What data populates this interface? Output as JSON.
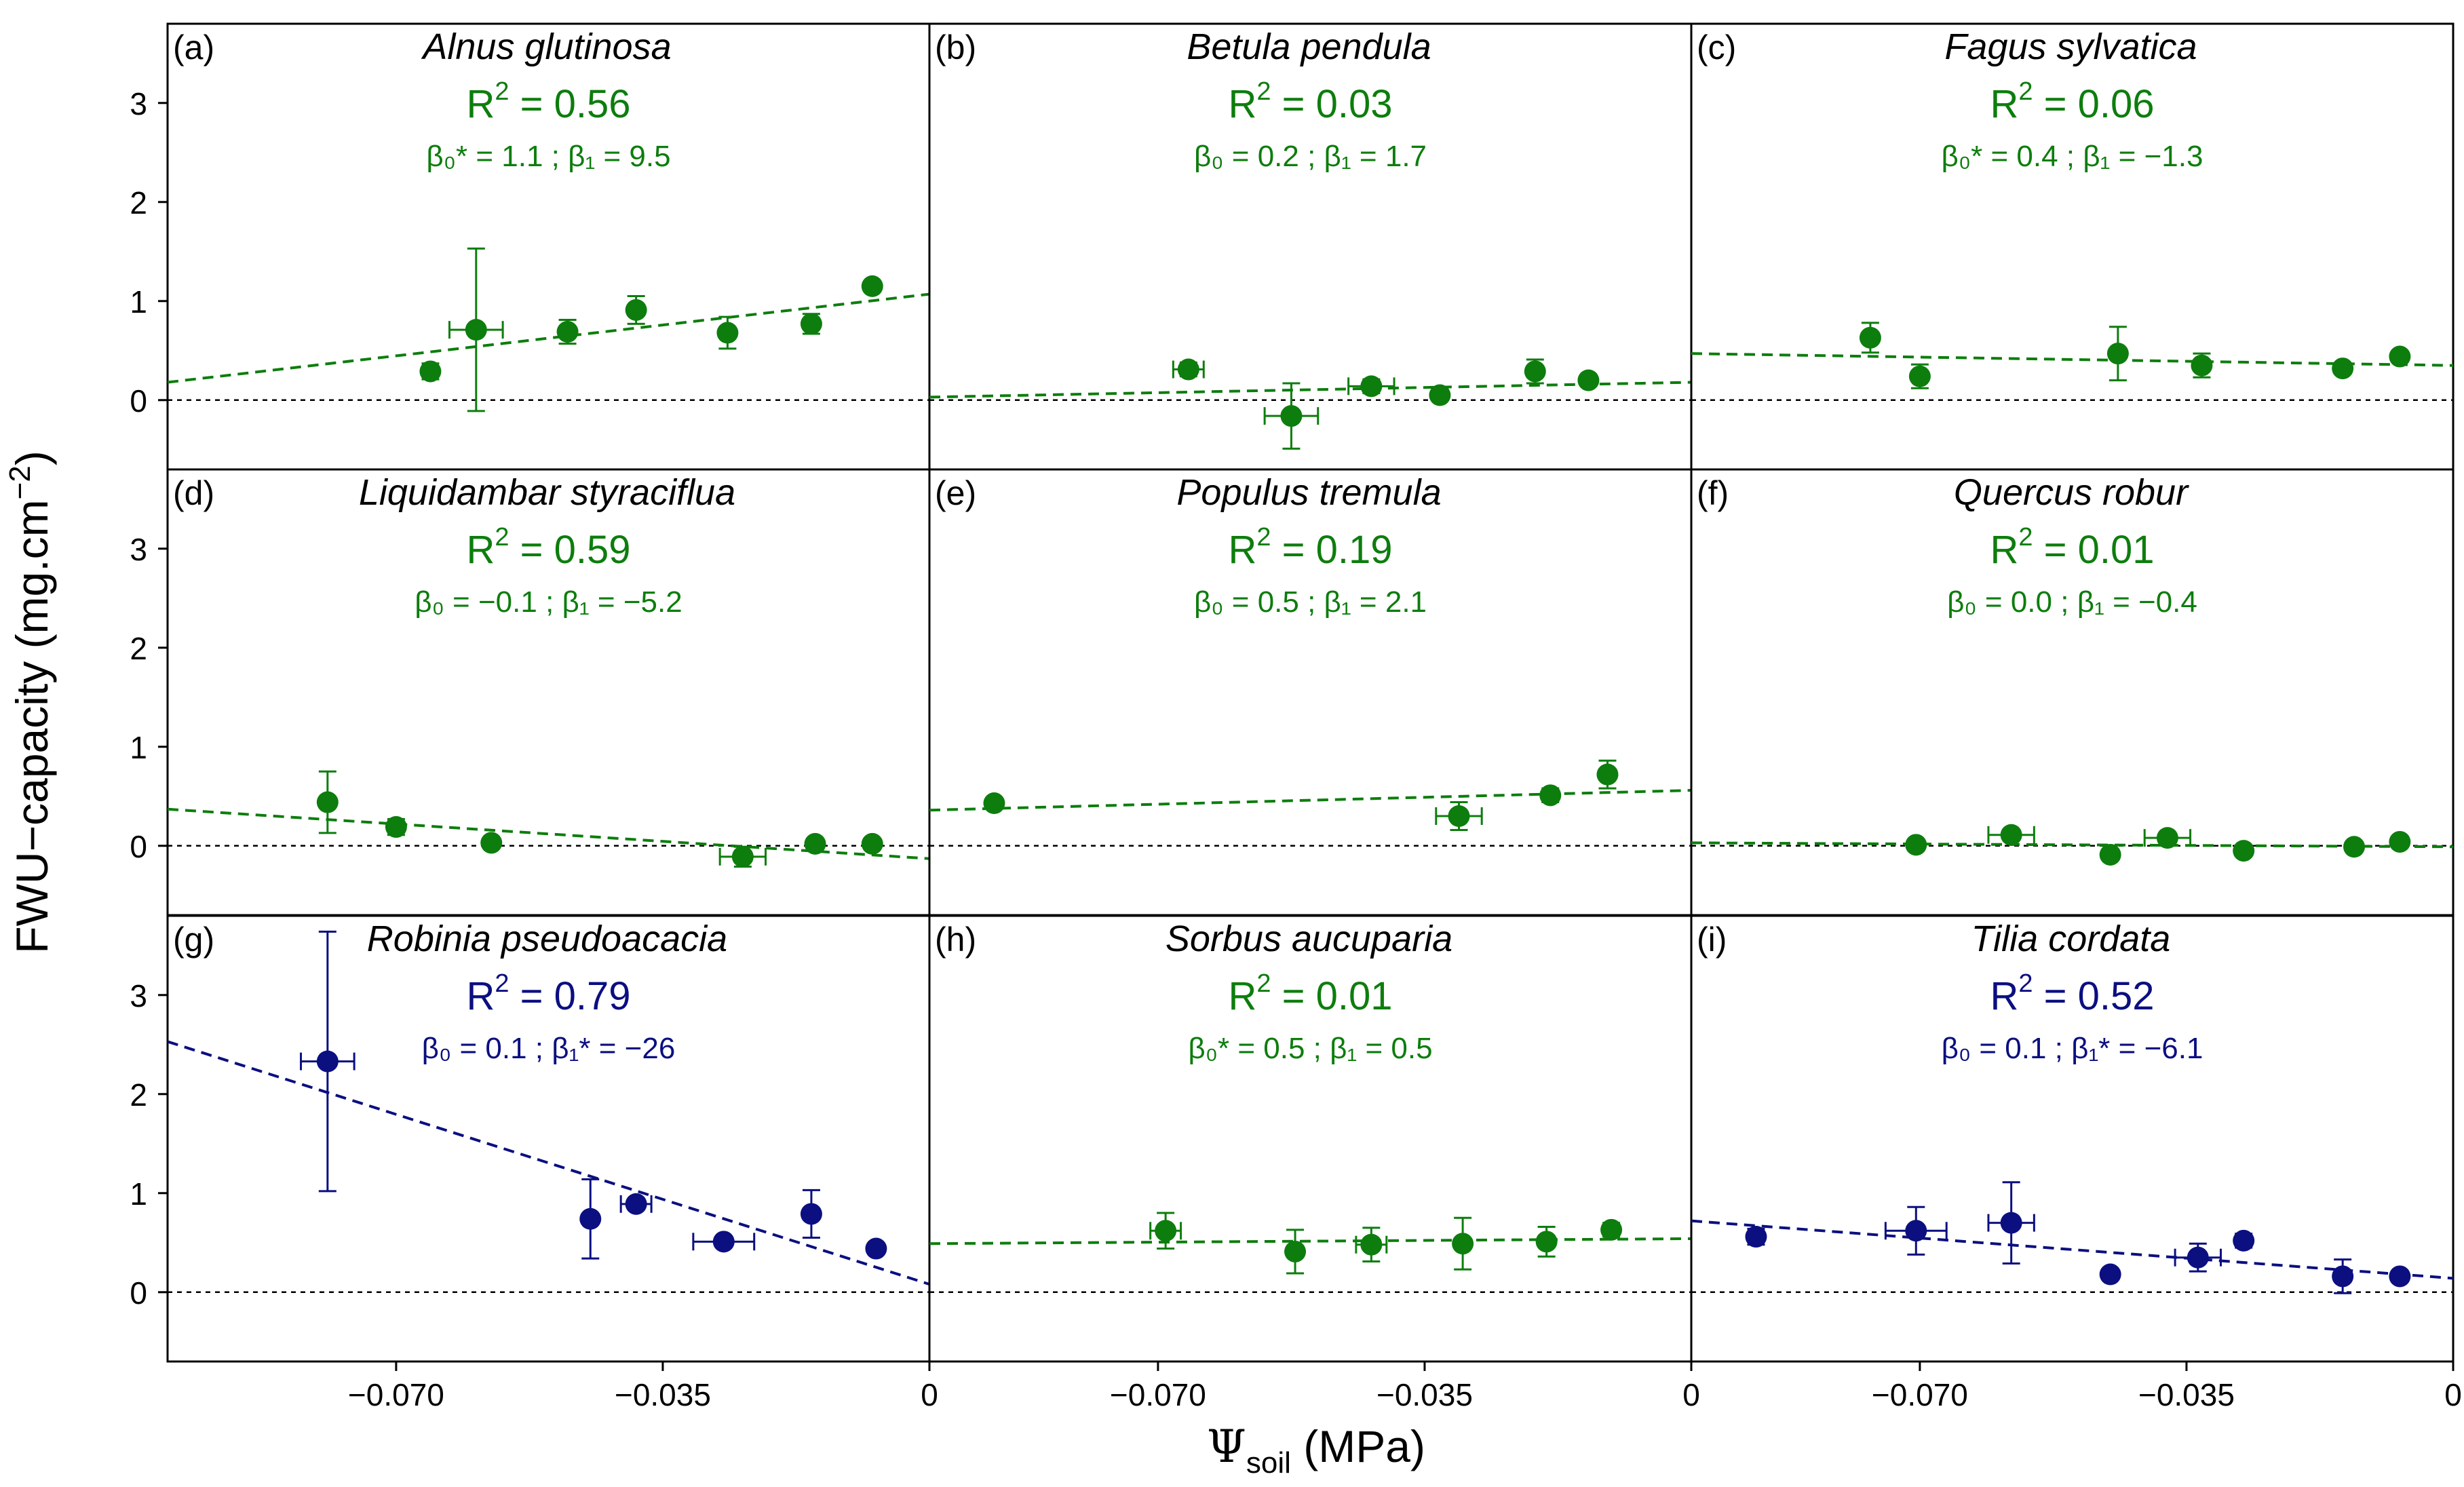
{
  "figure": {
    "ylabel_main": "FWU−capacity (mg.cm",
    "ylabel_exp": "−2",
    "ylabel_close": ")",
    "xlabel_psi": "Ψ",
    "xlabel_sub": "soil",
    "xlabel_unit": " (MPa)",
    "colors": {
      "green": "#0d7d0d",
      "navy": "#0b0f80",
      "axis": "#000000"
    }
  },
  "chart_data": [
    {
      "panel": "(a)",
      "species": "Alnus glutinosa",
      "color": "green",
      "r2": "0.56",
      "b0_label": "β₀* = ",
      "b0": "1.1",
      "b1_label": "β₁ = ",
      "b1": "9.5",
      "line": [
        [
          -0.1,
          0.18
        ],
        [
          0,
          1.07
        ]
      ],
      "points": [
        {
          "x": -0.0655,
          "y": 0.29,
          "yerr": 0.08,
          "xerr": 0
        },
        {
          "x": -0.0595,
          "y": 0.71,
          "yerr": 0.82,
          "xerr": 0.0035
        },
        {
          "x": -0.0475,
          "y": 0.69,
          "yerr": 0.12,
          "xerr": 0
        },
        {
          "x": -0.0385,
          "y": 0.91,
          "yerr": 0.14,
          "xerr": 0
        },
        {
          "x": -0.0265,
          "y": 0.68,
          "yerr": 0.16,
          "xerr": 0
        },
        {
          "x": -0.0155,
          "y": 0.77,
          "yerr": 0.1,
          "xerr": 0
        },
        {
          "x": -0.0075,
          "y": 1.15,
          "yerr": 0.05,
          "xerr": 0
        }
      ]
    },
    {
      "panel": "(b)",
      "species": "Betula pendula",
      "color": "green",
      "r2": "0.03",
      "b0_label": "β₀ = ",
      "b0": "0.2",
      "b1_label": "β₁ = ",
      "b1": "1.7",
      "line": [
        [
          -0.1,
          0.03
        ],
        [
          0,
          0.18
        ]
      ],
      "points": [
        {
          "x": -0.066,
          "y": 0.31,
          "yerr": 0.07,
          "xerr": 0.002
        },
        {
          "x": -0.0525,
          "y": -0.16,
          "yerr": 0.33,
          "xerr": 0.0035
        },
        {
          "x": -0.042,
          "y": 0.14,
          "yerr": 0.07,
          "xerr": 0.003
        },
        {
          "x": -0.033,
          "y": 0.05,
          "yerr": 0.05,
          "xerr": 0
        },
        {
          "x": -0.0205,
          "y": 0.29,
          "yerr": 0.12,
          "xerr": 0
        },
        {
          "x": -0.0135,
          "y": 0.2,
          "yerr": 0.04,
          "xerr": 0
        }
      ]
    },
    {
      "panel": "(c)",
      "species": "Fagus sylvatica",
      "color": "green",
      "r2": "0.06",
      "b0_label": "β₀* = ",
      "b0": "0.4",
      "b1_label": "β₁ = ",
      "b1": "−1.3",
      "line": [
        [
          -0.1,
          0.47
        ],
        [
          0,
          0.35
        ]
      ],
      "points": [
        {
          "x": -0.0765,
          "y": 0.63,
          "yerr": 0.15,
          "xerr": 0
        },
        {
          "x": -0.07,
          "y": 0.24,
          "yerr": 0.12,
          "xerr": 0
        },
        {
          "x": -0.044,
          "y": 0.47,
          "yerr": 0.27,
          "xerr": 0
        },
        {
          "x": -0.033,
          "y": 0.35,
          "yerr": 0.12,
          "xerr": 0
        },
        {
          "x": -0.0145,
          "y": 0.32,
          "yerr": 0.05,
          "xerr": 0
        },
        {
          "x": -0.007,
          "y": 0.44,
          "yerr": 0.05,
          "xerr": 0
        }
      ]
    },
    {
      "panel": "(d)",
      "species": "Liquidambar styraciflua",
      "color": "green",
      "r2": "0.59",
      "b0_label": "β₀ = ",
      "b0": "−0.1",
      "b1_label": "β₁ = ",
      "b1": "−5.2",
      "line": [
        [
          -0.1,
          0.37
        ],
        [
          0,
          -0.13
        ]
      ],
      "points": [
        {
          "x": -0.079,
          "y": 0.44,
          "yerr": 0.31,
          "xerr": 0
        },
        {
          "x": -0.07,
          "y": 0.19,
          "yerr": 0.08,
          "xerr": 0
        },
        {
          "x": -0.0575,
          "y": 0.03,
          "yerr": 0.05,
          "xerr": 0
        },
        {
          "x": -0.0245,
          "y": -0.11,
          "yerr": 0.1,
          "xerr": 0.003
        },
        {
          "x": -0.015,
          "y": 0.02,
          "yerr": 0.04,
          "xerr": 0
        },
        {
          "x": -0.0075,
          "y": 0.02,
          "yerr": 0.04,
          "xerr": 0
        }
      ]
    },
    {
      "panel": "(e)",
      "species": "Populus tremula",
      "color": "green",
      "r2": "0.19",
      "b0_label": "β₀ = ",
      "b0": "0.5",
      "b1_label": "β₁ = ",
      "b1": "2.1",
      "line": [
        [
          -0.1,
          0.36
        ],
        [
          0,
          0.56
        ]
      ],
      "points": [
        {
          "x": -0.0915,
          "y": 0.43,
          "yerr": 0.04,
          "xerr": 0
        },
        {
          "x": -0.0305,
          "y": 0.3,
          "yerr": 0.14,
          "xerr": 0.003
        },
        {
          "x": -0.0185,
          "y": 0.51,
          "yerr": 0.07,
          "xerr": 0
        },
        {
          "x": -0.011,
          "y": 0.72,
          "yerr": 0.14,
          "xerr": 0
        }
      ]
    },
    {
      "panel": "(f)",
      "species": "Quercus robur",
      "color": "green",
      "r2": "0.01",
      "b0_label": "β₀ = ",
      "b0": "0.0",
      "b1_label": "β₁ = ",
      "b1": "−0.4",
      "line": [
        [
          -0.1,
          0.03
        ],
        [
          0,
          -0.01
        ]
      ],
      "points": [
        {
          "x": -0.0705,
          "y": 0.01,
          "yerr": 0.03,
          "xerr": 0
        },
        {
          "x": -0.058,
          "y": 0.11,
          "yerr": 0.04,
          "xerr": 0.003
        },
        {
          "x": -0.045,
          "y": -0.09,
          "yerr": 0.03,
          "xerr": 0
        },
        {
          "x": -0.0375,
          "y": 0.08,
          "yerr": 0.05,
          "xerr": 0.003
        },
        {
          "x": -0.0275,
          "y": -0.05,
          "yerr": 0.04,
          "xerr": 0
        },
        {
          "x": -0.013,
          "y": -0.01,
          "yerr": 0.04,
          "xerr": 0
        },
        {
          "x": -0.007,
          "y": 0.04,
          "yerr": 0.03,
          "xerr": 0
        }
      ]
    },
    {
      "panel": "(g)",
      "species": "Robinia pseudoacacia",
      "color": "navy",
      "r2": "0.79",
      "b0_label": "β₀ = ",
      "b0": "0.1",
      "b1_label": "β₁* = ",
      "b1": "−26",
      "line": [
        [
          -0.1,
          2.53
        ],
        [
          0,
          0.08
        ]
      ],
      "points": [
        {
          "x": -0.079,
          "y": 2.33,
          "yerr": 1.31,
          "xerr": 0.0035
        },
        {
          "x": -0.0445,
          "y": 0.74,
          "yerr": 0.4,
          "xerr": 0
        },
        {
          "x": -0.0385,
          "y": 0.89,
          "yerr": 0.05,
          "xerr": 0.002
        },
        {
          "x": -0.027,
          "y": 0.51,
          "yerr": 0.05,
          "xerr": 0.004
        },
        {
          "x": -0.0155,
          "y": 0.79,
          "yerr": 0.24,
          "xerr": 0
        },
        {
          "x": -0.007,
          "y": 0.44,
          "yerr": 0.04,
          "xerr": 0
        }
      ]
    },
    {
      "panel": "(h)",
      "species": "Sorbus aucuparia",
      "color": "green",
      "r2": "0.01",
      "b0_label": "β₀* = ",
      "b0": "0.5",
      "b1_label": "β₁ = ",
      "b1": "0.5",
      "line": [
        [
          -0.1,
          0.49
        ],
        [
          0,
          0.54
        ]
      ],
      "points": [
        {
          "x": -0.069,
          "y": 0.62,
          "yerr": 0.18,
          "xerr": 0.002
        },
        {
          "x": -0.052,
          "y": 0.41,
          "yerr": 0.22,
          "xerr": 0
        },
        {
          "x": -0.042,
          "y": 0.48,
          "yerr": 0.17,
          "xerr": 0.002
        },
        {
          "x": -0.03,
          "y": 0.49,
          "yerr": 0.26,
          "xerr": 0
        },
        {
          "x": -0.019,
          "y": 0.51,
          "yerr": 0.15,
          "xerr": 0
        },
        {
          "x": -0.0105,
          "y": 0.63,
          "yerr": 0.07,
          "xerr": 0
        }
      ]
    },
    {
      "panel": "(i)",
      "species": "Tilia cordata",
      "color": "navy",
      "r2": "0.52",
      "b0_label": "β₀ = ",
      "b0": "0.1",
      "b1_label": "β₁* = ",
      "b1": "−6.1",
      "line": [
        [
          -0.1,
          0.72
        ],
        [
          0,
          0.14
        ]
      ],
      "points": [
        {
          "x": -0.0915,
          "y": 0.56,
          "yerr": 0.08,
          "xerr": 0
        },
        {
          "x": -0.0705,
          "y": 0.62,
          "yerr": 0.24,
          "xerr": 0.004
        },
        {
          "x": -0.058,
          "y": 0.7,
          "yerr": 0.41,
          "xerr": 0.003
        },
        {
          "x": -0.045,
          "y": 0.18,
          "yerr": 0.04,
          "xerr": 0
        },
        {
          "x": -0.0335,
          "y": 0.35,
          "yerr": 0.14,
          "xerr": 0.003
        },
        {
          "x": -0.0275,
          "y": 0.52,
          "yerr": 0.07,
          "xerr": 0
        },
        {
          "x": -0.0145,
          "y": 0.16,
          "yerr": 0.17,
          "xerr": 0
        },
        {
          "x": -0.007,
          "y": 0.16,
          "yerr": 0.05,
          "xerr": 0
        }
      ]
    }
  ],
  "axes": {
    "xlim": [
      -0.1,
      0
    ],
    "ylim": [
      -0.7,
      3.8
    ],
    "yticks": [
      0,
      1,
      2,
      3
    ],
    "ytick_labels": [
      "0",
      "1",
      "2",
      "3"
    ],
    "xticks": [
      0,
      -0.07,
      -0.035
    ],
    "xtick_labels": [
      "0",
      "−0.070",
      "−0.035"
    ]
  }
}
